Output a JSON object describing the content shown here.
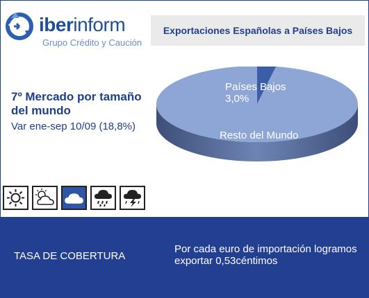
{
  "header": {
    "brand": "iberinform",
    "brand_bold": "iber",
    "brand_light": "inform",
    "tagline": "Grupo Crédito y Caución",
    "title": "Exportaciones Españolas a Países Bajos"
  },
  "market": {
    "title": "7º Mercado por tamaño del mundo",
    "variation": "Var ene-sep 10/09 (18,8%)"
  },
  "chart_data": {
    "type": "pie",
    "style": "3d",
    "slices": [
      {
        "label": "Países Bajos",
        "value": 3.0,
        "value_label": "3,0%",
        "color": "#3a5fa8"
      },
      {
        "label": "Resto del Mundo",
        "value": 97.0,
        "value_label": "",
        "color": "#8ea6d6"
      }
    ]
  },
  "weather_scale": {
    "icons": [
      "sun-icon",
      "partly-cloudy-icon",
      "cloud-icon",
      "rain-icon",
      "storm-icon"
    ],
    "selected_index": 2,
    "accent": "#2f56a6"
  },
  "footer": {
    "label": "TASA DE COBERTURA",
    "text": "Por cada euro de importación logramos exportar 0,53céntimos",
    "background": "#223f92"
  }
}
